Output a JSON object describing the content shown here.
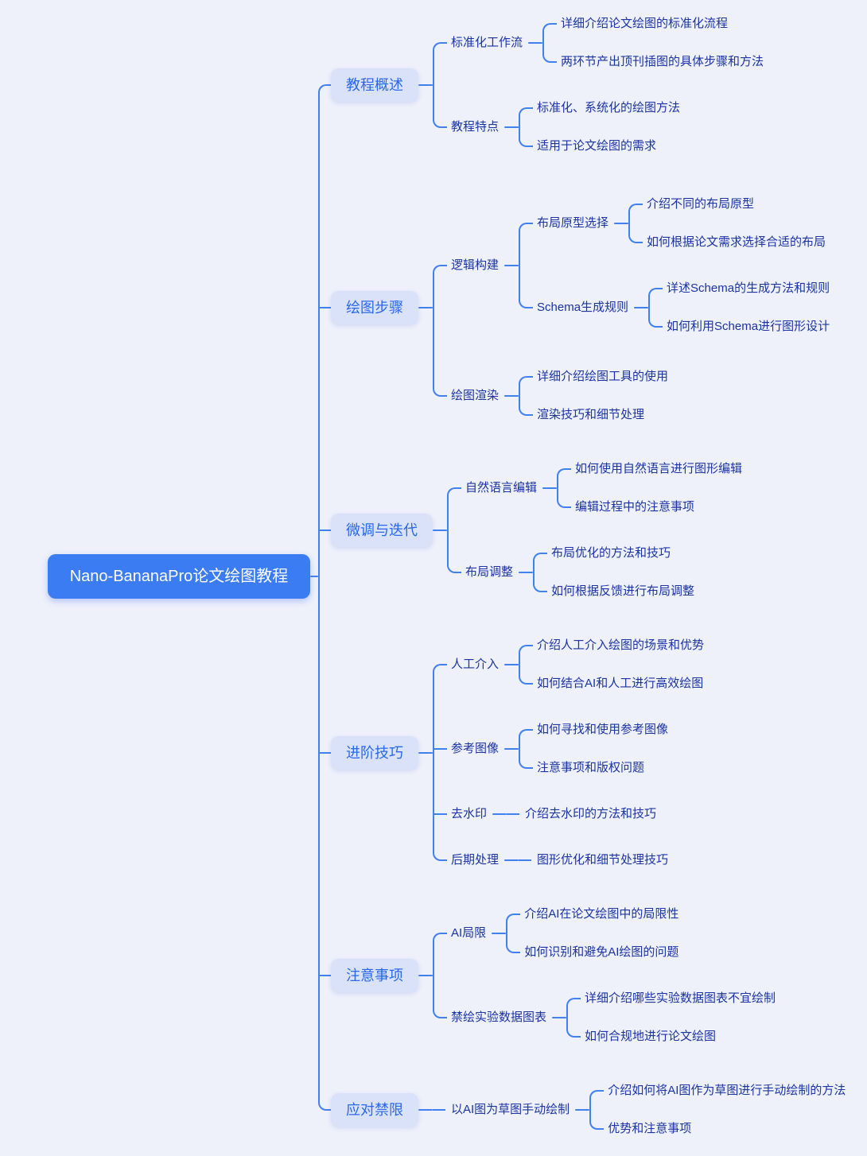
{
  "root": {
    "label": "Nano-BananaPro论文绘图教程"
  },
  "colors": {
    "background": "#eef0fa",
    "connector_line": "#4080f0",
    "root_node_bg": "#3b7cf2",
    "root_node_text": "#ffffff",
    "topic_node_bg": "#d9e2f9",
    "topic_node_text": "#2968ea",
    "branch_text": "#1b33a3"
  },
  "sections": [
    {
      "label": "教程概述",
      "children": [
        {
          "label": "标准化工作流",
          "children": [
            {
              "label": "详细介绍论文绘图的标准化流程"
            },
            {
              "label": "两环节产出顶刊插图的具体步骤和方法"
            }
          ]
        },
        {
          "label": "教程特点",
          "children": [
            {
              "label": "标准化、系统化的绘图方法"
            },
            {
              "label": "适用于论文绘图的需求"
            }
          ]
        }
      ]
    },
    {
      "label": "绘图步骤",
      "children": [
        {
          "label": "逻辑构建",
          "children": [
            {
              "label": "布局原型选择",
              "children": [
                {
                  "label": "介绍不同的布局原型"
                },
                {
                  "label": "如何根据论文需求选择合适的布局"
                }
              ]
            },
            {
              "label": "Schema生成规则",
              "children": [
                {
                  "label": "详述Schema的生成方法和规则"
                },
                {
                  "label": "如何利用Schema进行图形设计"
                }
              ]
            }
          ]
        },
        {
          "label": "绘图渲染",
          "children": [
            {
              "label": "详细介绍绘图工具的使用"
            },
            {
              "label": "渲染技巧和细节处理"
            }
          ]
        }
      ]
    },
    {
      "label": "微调与迭代",
      "children": [
        {
          "label": "自然语言编辑",
          "children": [
            {
              "label": "如何使用自然语言进行图形编辑"
            },
            {
              "label": "编辑过程中的注意事项"
            }
          ]
        },
        {
          "label": "布局调整",
          "children": [
            {
              "label": "布局优化的方法和技巧"
            },
            {
              "label": "如何根据反馈进行布局调整"
            }
          ]
        }
      ]
    },
    {
      "label": "进阶技巧",
      "children": [
        {
          "label": "人工介入",
          "children": [
            {
              "label": "介绍人工介入绘图的场景和优势"
            },
            {
              "label": "如何结合AI和人工进行高效绘图"
            }
          ]
        },
        {
          "label": "参考图像",
          "children": [
            {
              "label": "如何寻找和使用参考图像"
            },
            {
              "label": "注意事项和版权问题"
            }
          ]
        },
        {
          "label": "去水印",
          "children": [
            {
              "label": "介绍去水印的方法和技巧"
            }
          ]
        },
        {
          "label": "后期处理",
          "children": [
            {
              "label": "图形优化和细节处理技巧"
            }
          ]
        }
      ]
    },
    {
      "label": "注意事项",
      "children": [
        {
          "label": "AI局限",
          "children": [
            {
              "label": "介绍AI在论文绘图中的局限性"
            },
            {
              "label": "如何识别和避免AI绘图的问题"
            }
          ]
        },
        {
          "label": "禁绘实验数据图表",
          "children": [
            {
              "label": "详细介绍哪些实验数据图表不宜绘制"
            },
            {
              "label": "如何合规地进行论文绘图"
            }
          ]
        }
      ]
    },
    {
      "label": "应对禁限",
      "children": [
        {
          "label": "以AI图为草图手动绘制",
          "children": [
            {
              "label": "介绍如何将AI图作为草图进行手动绘制的方法"
            },
            {
              "label": "优势和注意事项"
            }
          ]
        }
      ]
    }
  ]
}
